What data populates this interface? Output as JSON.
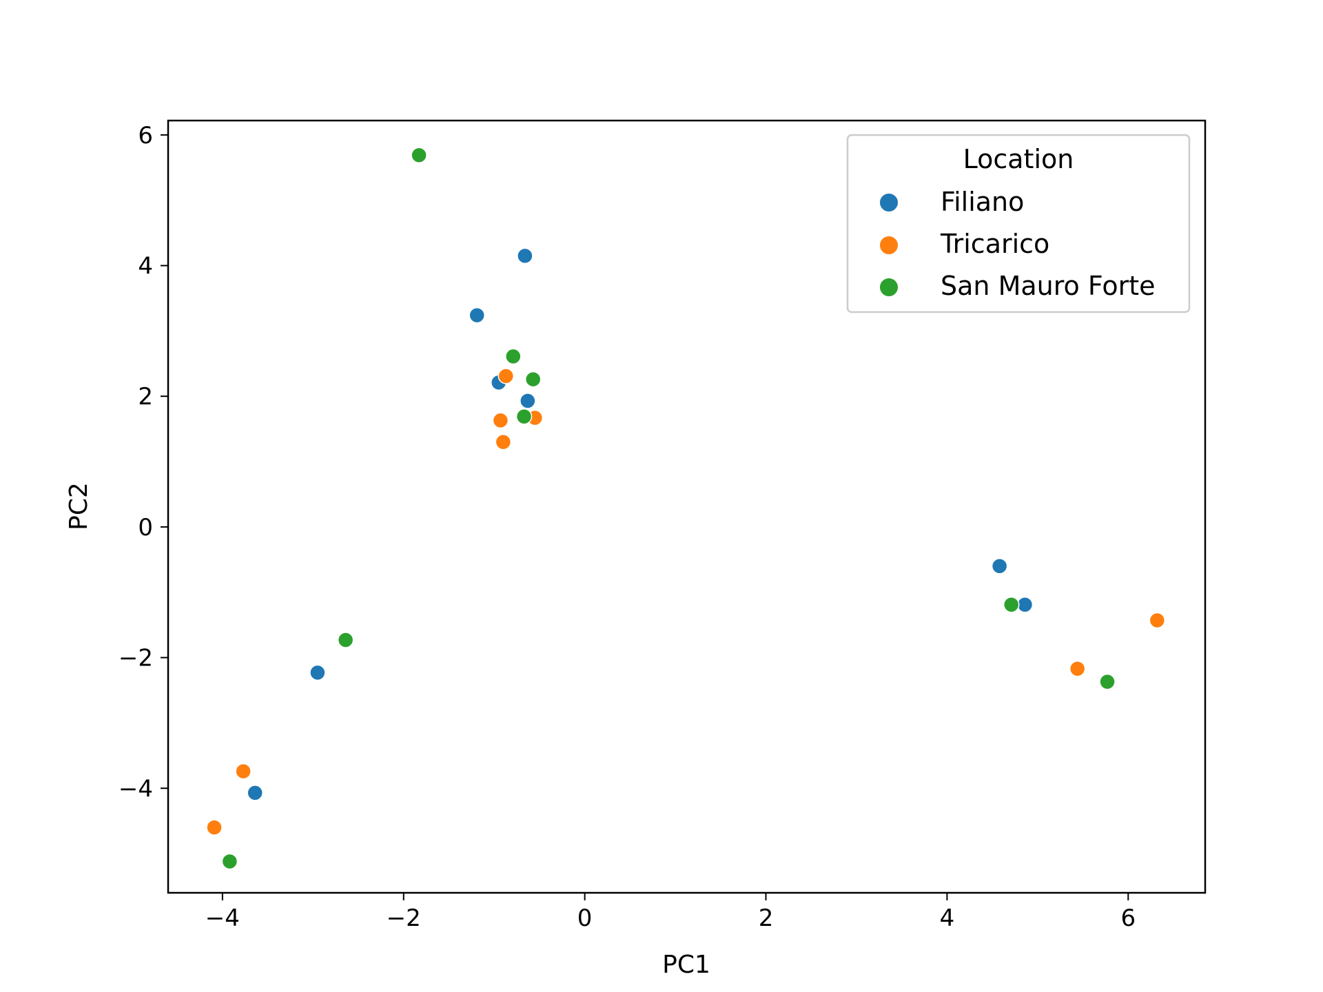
{
  "chart_data": {
    "type": "scatter",
    "xlabel": "PC1",
    "ylabel": "PC2",
    "xlim": [
      -4.6,
      6.85
    ],
    "ylim": [
      -5.6,
      6.22
    ],
    "xticks": [
      {
        "value": -4,
        "label": "−4"
      },
      {
        "value": -2,
        "label": "−2"
      },
      {
        "value": 0,
        "label": "0"
      },
      {
        "value": 2,
        "label": "2"
      },
      {
        "value": 4,
        "label": "4"
      },
      {
        "value": 6,
        "label": "6"
      }
    ],
    "yticks": [
      {
        "value": -4,
        "label": "−4"
      },
      {
        "value": -2,
        "label": "−2"
      },
      {
        "value": 0,
        "label": "0"
      },
      {
        "value": 2,
        "label": "2"
      },
      {
        "value": 4,
        "label": "4"
      },
      {
        "value": 6,
        "label": "6"
      }
    ],
    "grid": false,
    "legend": {
      "title": "Location",
      "placement": "top-right"
    },
    "series": [
      {
        "name": "Filiano",
        "color": "#1f77b4",
        "points": [
          {
            "x": -0.66,
            "y": 4.15
          },
          {
            "x": -1.19,
            "y": 3.24
          },
          {
            "x": -0.95,
            "y": 2.21
          },
          {
            "x": -0.63,
            "y": 1.93
          },
          {
            "x": 4.58,
            "y": -0.6
          },
          {
            "x": 4.86,
            "y": -1.19
          },
          {
            "x": -2.95,
            "y": -2.23
          },
          {
            "x": -3.64,
            "y": -4.07
          }
        ]
      },
      {
        "name": "Tricarico",
        "color": "#ff7f0e",
        "points": [
          {
            "x": -0.87,
            "y": 2.31
          },
          {
            "x": -0.93,
            "y": 1.63
          },
          {
            "x": -0.55,
            "y": 1.67
          },
          {
            "x": -0.9,
            "y": 1.3
          },
          {
            "x": 6.32,
            "y": -1.43
          },
          {
            "x": 5.44,
            "y": -2.17
          },
          {
            "x": -3.77,
            "y": -3.74
          },
          {
            "x": -4.09,
            "y": -4.6
          }
        ]
      },
      {
        "name": "San Mauro Forte",
        "color": "#2ca02c",
        "points": [
          {
            "x": -1.83,
            "y": 5.69
          },
          {
            "x": -0.79,
            "y": 2.61
          },
          {
            "x": -0.57,
            "y": 2.26
          },
          {
            "x": -0.67,
            "y": 1.69
          },
          {
            "x": -2.64,
            "y": -1.73
          },
          {
            "x": 4.71,
            "y": -1.19
          },
          {
            "x": 5.77,
            "y": -2.37
          },
          {
            "x": -3.92,
            "y": -5.12
          }
        ]
      }
    ]
  }
}
